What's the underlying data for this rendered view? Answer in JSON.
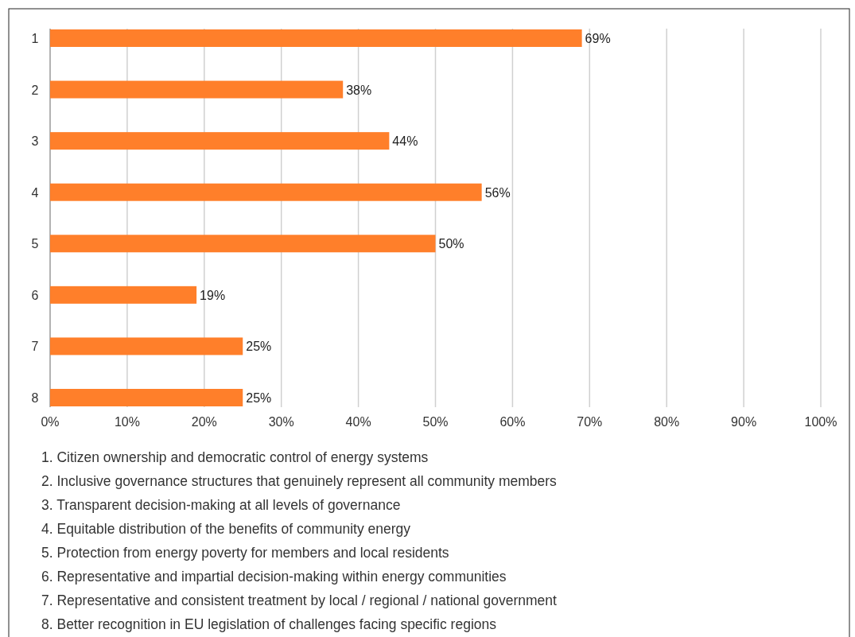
{
  "chart_data": {
    "type": "bar",
    "orientation": "horizontal",
    "categories": [
      "1",
      "2",
      "3",
      "4",
      "5",
      "6",
      "7",
      "8"
    ],
    "values": [
      69,
      38,
      44,
      56,
      50,
      19,
      25,
      25
    ],
    "value_labels": [
      "69%",
      "38%",
      "44%",
      "56%",
      "50%",
      "19%",
      "25%",
      "25%"
    ],
    "color": "#ff7f2a",
    "xlim": [
      0,
      100
    ],
    "xticks": [
      {
        "value": 0,
        "label": "0%"
      },
      {
        "value": 10,
        "label": "10%"
      },
      {
        "value": 20,
        "label": "20%"
      },
      {
        "value": 30,
        "label": "30%"
      },
      {
        "value": 40,
        "label": "40%"
      },
      {
        "value": 50,
        "label": "50%"
      },
      {
        "value": 60,
        "label": "60%"
      },
      {
        "value": 70,
        "label": "70%"
      },
      {
        "value": 80,
        "label": "80%"
      },
      {
        "value": 90,
        "label": "90%"
      },
      {
        "value": 100,
        "label": "100%"
      }
    ],
    "grid": "x",
    "annotations": [
      "1. Citizen ownership and democratic control of energy systems",
      "2. Inclusive governance structures that genuinely represent all community members",
      "3. Transparent decision-making at all levels of governance",
      "4. Equitable distribution of the benefits of community energy",
      "5. Protection from energy poverty for members and local residents",
      "6. Representative and impartial decision-making within energy communities",
      "7. Representative and consistent treatment by local / regional / national government",
      "8. Better recognition in EU legislation of challenges facing specific regions"
    ]
  }
}
